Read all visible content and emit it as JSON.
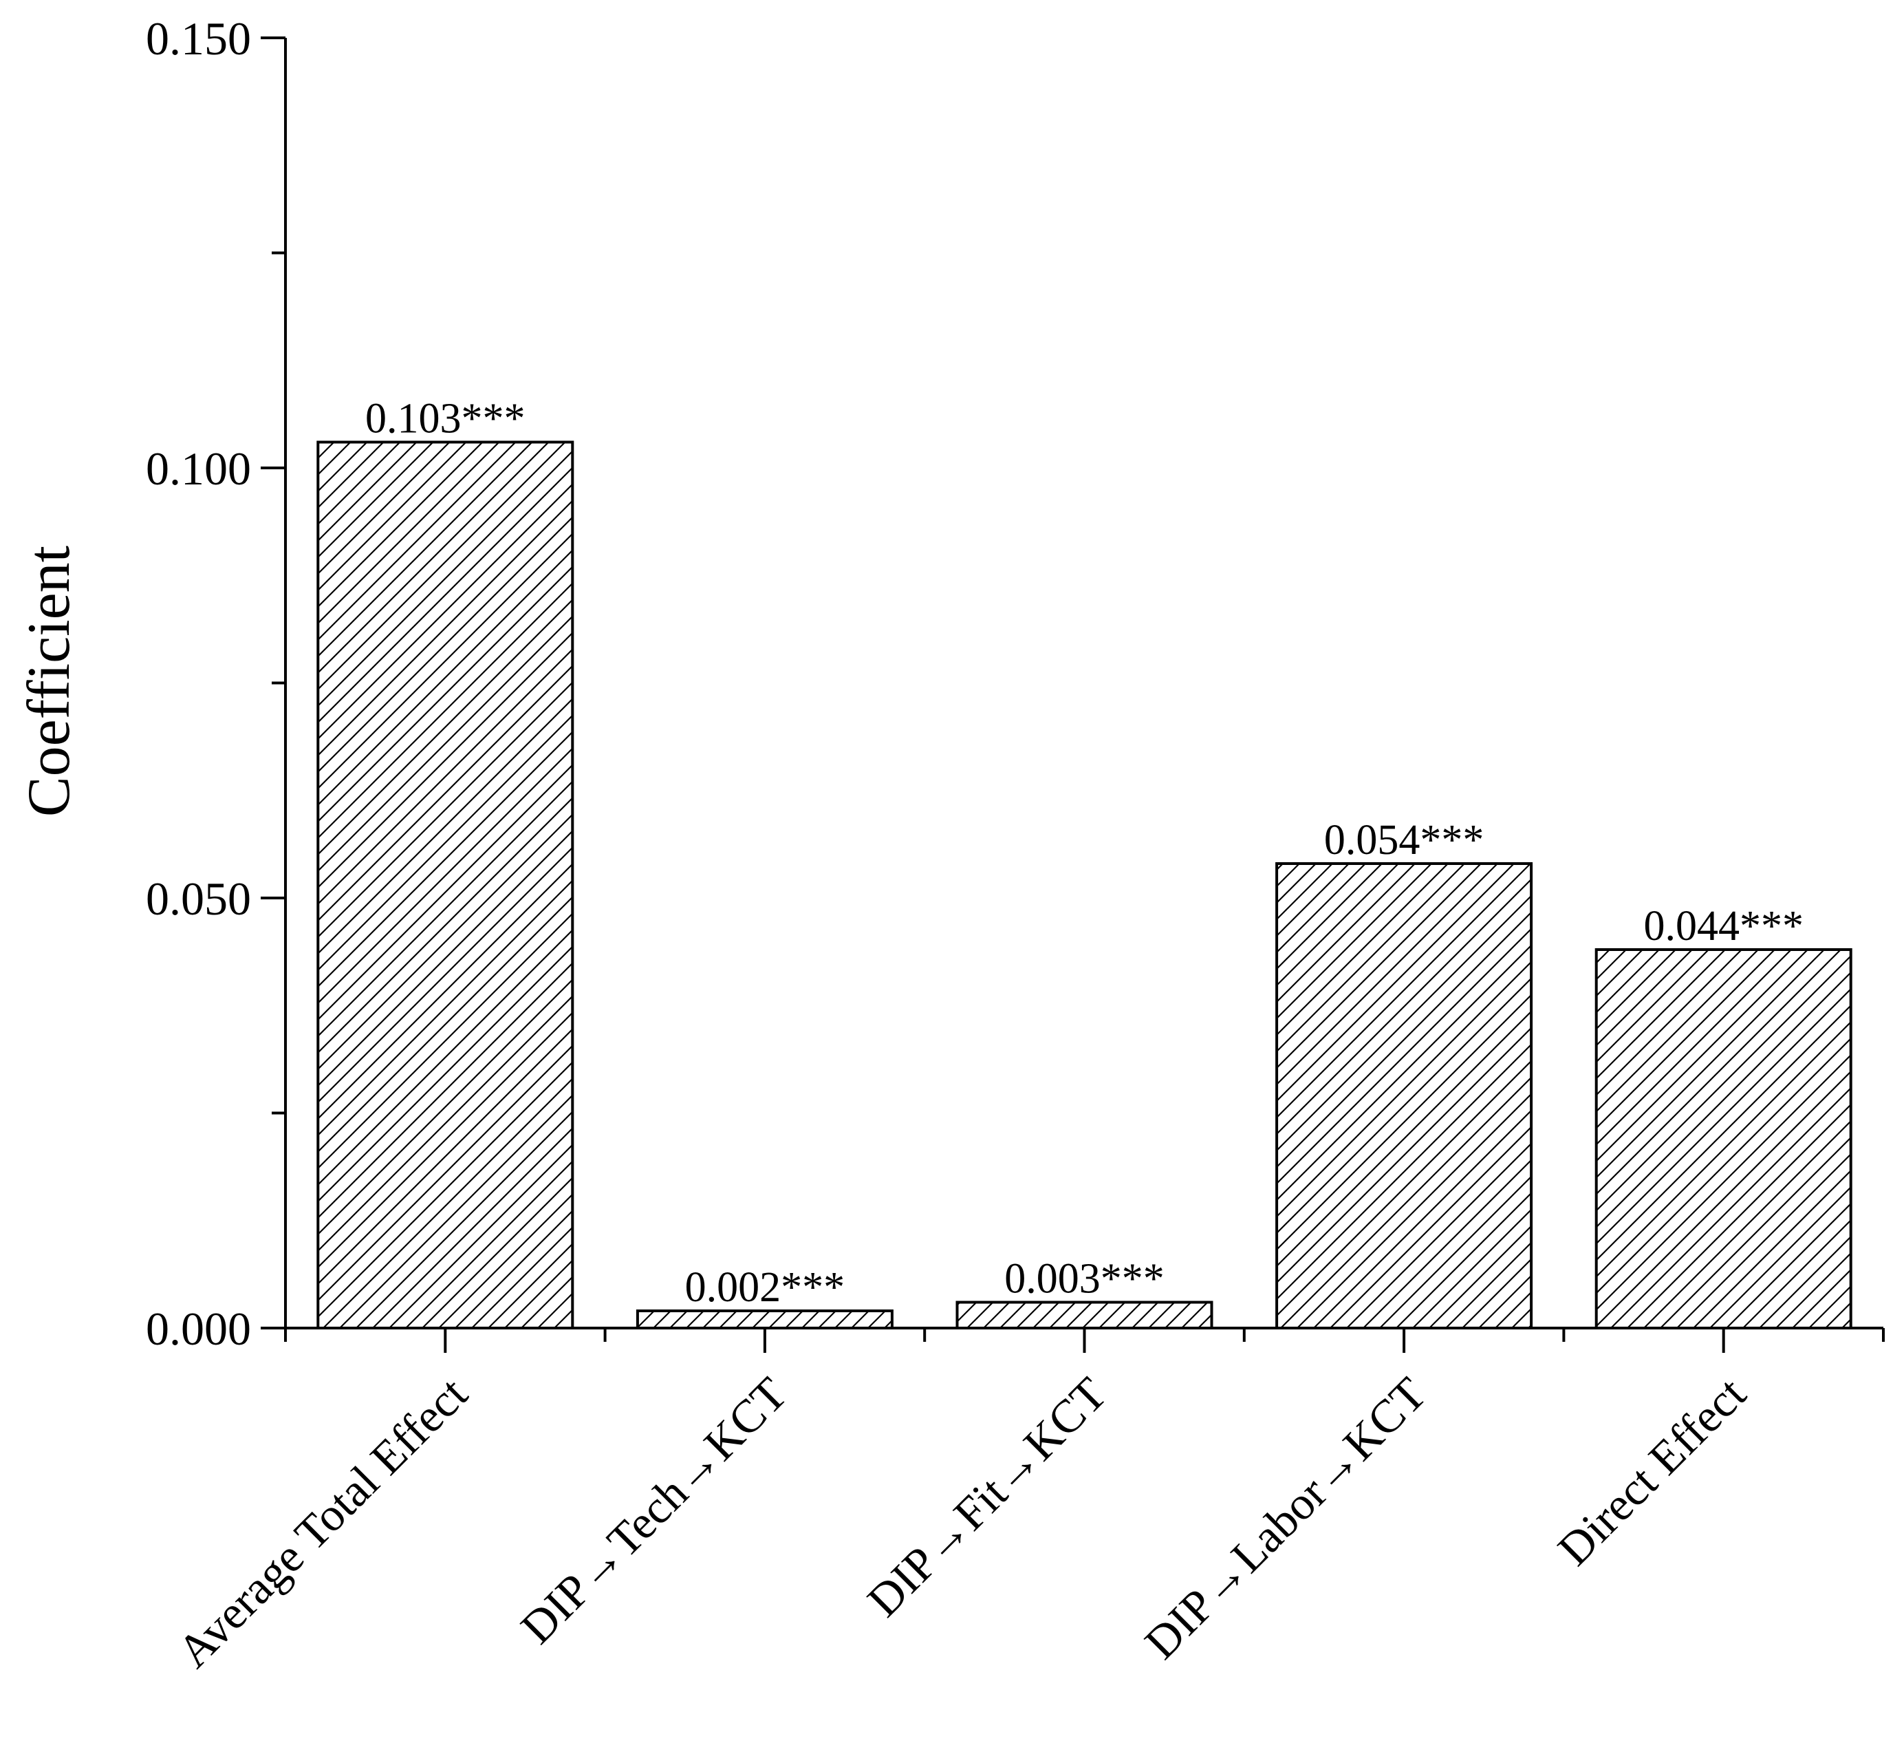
{
  "chart_data": {
    "type": "bar",
    "title": "",
    "xlabel": "",
    "ylabel": "Coefficient",
    "categories": [
      "Average Total Effect",
      "DIP→Tech→KCT",
      "DIP→Fit→KCT",
      "DIP→Labor→KCT",
      "Direct Effect"
    ],
    "values": [
      0.103,
      0.002,
      0.003,
      0.054,
      0.044
    ],
    "data_labels": [
      "0.103***",
      "0.002***",
      "0.003***",
      "0.054***",
      "0.044***"
    ],
    "ylim": [
      0,
      0.15
    ],
    "y_ticks": [
      0.0,
      0.05,
      0.1,
      0.15
    ],
    "y_tick_labels": [
      "0.000",
      "0.050",
      "0.100",
      "0.150"
    ],
    "y_minor_ticks": [
      0.025,
      0.075,
      0.125
    ],
    "grid": false,
    "legend": "none",
    "bar_fill": "hatched",
    "colors": {
      "bar_stroke": "#000000",
      "hatch": "#000000",
      "background": "#ffffff"
    }
  }
}
